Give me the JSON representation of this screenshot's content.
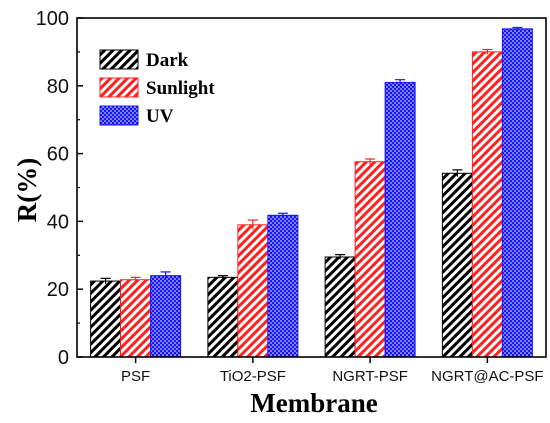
{
  "chart_data": {
    "type": "bar",
    "categories": [
      "PSF",
      "TiO2-PSF",
      "NGRT-PSF",
      "NGRT@AC-PSF"
    ],
    "series": [
      {
        "name": "Dark",
        "values": [
          22.4,
          23.5,
          29.5,
          54.2
        ],
        "errors": [
          0.8,
          0.5,
          0.7,
          1.0
        ],
        "color": "#000000",
        "pattern": "diagonal-hatch"
      },
      {
        "name": "Sunlight",
        "values": [
          22.8,
          39.0,
          57.6,
          90.0
        ],
        "errors": [
          0.7,
          1.4,
          0.8,
          0.7
        ],
        "color": "#ff2020",
        "pattern": "diagonal-hatch"
      },
      {
        "name": "UV",
        "values": [
          24.0,
          41.8,
          81.0,
          96.8
        ],
        "errors": [
          1.1,
          0.6,
          0.8,
          0.4
        ],
        "color": "#1515ff",
        "pattern": "dots"
      }
    ],
    "xlabel": "Membrane",
    "ylabel": "R(%)",
    "ylim": [
      0,
      100
    ],
    "yticks": [
      0,
      20,
      40,
      60,
      80,
      100
    ],
    "legend_position": "top-left",
    "grid": false,
    "error_bars": true
  }
}
